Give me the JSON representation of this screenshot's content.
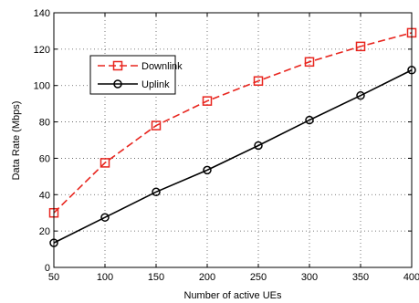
{
  "chart_data": {
    "type": "line",
    "title": "",
    "xlabel": "Number of active UEs",
    "ylabel": "Data Rate (Mbps)",
    "x": [
      50,
      100,
      150,
      200,
      250,
      300,
      350,
      400
    ],
    "xlim": [
      50,
      400
    ],
    "ylim": [
      0,
      140
    ],
    "xticks": [
      "50",
      "100",
      "150",
      "200",
      "250",
      "300",
      "350",
      "400"
    ],
    "yticks": [
      "0",
      "20",
      "40",
      "60",
      "80",
      "100",
      "120",
      "140"
    ],
    "grid": true,
    "legend_position": "top-left",
    "series": [
      {
        "name": "Downlink",
        "values": [
          30,
          57.5,
          78,
          91.5,
          102.5,
          113,
          121.5,
          129
        ],
        "color": "#e8261f",
        "linestyle": "dashed",
        "marker": "square"
      },
      {
        "name": "Uplink",
        "values": [
          13.5,
          27.5,
          41.5,
          53.5,
          67,
          81,
          94.5,
          108.5
        ],
        "color": "#000000",
        "linestyle": "solid",
        "marker": "circle"
      }
    ]
  }
}
